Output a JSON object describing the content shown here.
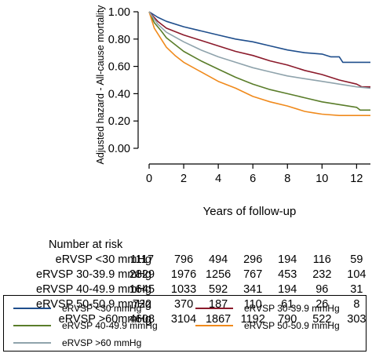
{
  "chart_data": {
    "type": "line",
    "title": "",
    "xlabel": "Years of follow-up",
    "ylabel": "Adjusted hazard - All-cause mortality",
    "xlim": [
      0,
      12.8
    ],
    "ylim": [
      0,
      1.05
    ],
    "xticks": [
      0,
      2,
      4,
      6,
      8,
      10,
      12
    ],
    "yticks": [
      0.0,
      0.2,
      0.4,
      0.6,
      0.8,
      1.0
    ],
    "xtick_labels": [
      "0",
      "2",
      "4",
      "6",
      "8",
      "10",
      "12"
    ],
    "ytick_labels": [
      "0.00",
      "0.20",
      "0.40",
      "0.60",
      "0.80",
      "1.00"
    ],
    "grid": false,
    "legend_position": "bottom",
    "series": [
      {
        "name": "eRVSP <30 mmHg",
        "color": "#1f4e8c",
        "x": [
          0,
          0.5,
          1,
          2,
          3,
          4,
          5,
          6,
          7,
          8,
          9,
          10,
          10.5,
          11,
          11.2,
          12,
          12.8
        ],
        "y": [
          1.0,
          0.96,
          0.93,
          0.89,
          0.86,
          0.83,
          0.8,
          0.78,
          0.75,
          0.72,
          0.7,
          0.69,
          0.67,
          0.67,
          0.63,
          0.63,
          0.63
        ]
      },
      {
        "name": "eRVSP 30-39.9 mmHg",
        "color": "#8b1a2b",
        "x": [
          0,
          0.5,
          1,
          2,
          3,
          4,
          5,
          6,
          7,
          8,
          9,
          10,
          11,
          12,
          12.3,
          12.8
        ],
        "y": [
          1.0,
          0.93,
          0.88,
          0.83,
          0.79,
          0.75,
          0.71,
          0.68,
          0.64,
          0.61,
          0.57,
          0.54,
          0.5,
          0.47,
          0.45,
          0.45
        ]
      },
      {
        "name": "eRVSP 40-49.9 mmHg",
        "color": "#5a7d2a",
        "x": [
          0,
          0.3,
          0.7,
          1,
          2,
          3,
          4,
          5,
          6,
          7,
          8,
          9,
          10,
          11,
          12,
          12.2,
          12.8
        ],
        "y": [
          1.0,
          0.92,
          0.86,
          0.81,
          0.71,
          0.64,
          0.58,
          0.52,
          0.47,
          0.43,
          0.4,
          0.37,
          0.34,
          0.32,
          0.3,
          0.28,
          0.28
        ]
      },
      {
        "name": "eRVSP 50-50.9 mmHg",
        "color": "#f08a1c",
        "x": [
          0,
          0.3,
          0.7,
          1,
          1.5,
          2,
          3,
          4,
          5,
          6,
          7,
          8,
          9,
          9.5,
          10,
          11,
          12,
          12.8
        ],
        "y": [
          1.0,
          0.88,
          0.8,
          0.74,
          0.68,
          0.63,
          0.56,
          0.49,
          0.44,
          0.38,
          0.34,
          0.31,
          0.27,
          0.26,
          0.25,
          0.24,
          0.24,
          0.24
        ]
      },
      {
        "name": "eRVSP >60 mmHg",
        "color": "#8fa3ac",
        "x": [
          0,
          0.5,
          1,
          2,
          3,
          4,
          5,
          6,
          7,
          8,
          9,
          10,
          11,
          12,
          12.8
        ],
        "y": [
          1.0,
          0.91,
          0.85,
          0.78,
          0.72,
          0.67,
          0.63,
          0.59,
          0.56,
          0.53,
          0.51,
          0.49,
          0.47,
          0.45,
          0.44
        ]
      }
    ]
  },
  "risk_table": {
    "title": "Number at risk",
    "rows": [
      {
        "label": "eRVSP <30 mmHg",
        "values": [
          "1117",
          "796",
          "494",
          "296",
          "194",
          "116",
          "59"
        ]
      },
      {
        "label": "eRVSP 30-39.9 mmHg",
        "values": [
          "2829",
          "1976",
          "1256",
          "767",
          "453",
          "232",
          "104"
        ]
      },
      {
        "label": "eRVSP 40-49.9 mmHg",
        "values": [
          "1645",
          "1033",
          "592",
          "341",
          "194",
          "96",
          "31"
        ]
      },
      {
        "label": "eRVSP 50-50.9 mmHg",
        "values": [
          "722",
          "370",
          "187",
          "110",
          "61",
          "26",
          "8"
        ]
      },
      {
        "label": "eRVSP >60mmHg",
        "values": [
          "4608",
          "3104",
          "1867",
          "1192",
          "790",
          "522",
          "303"
        ]
      }
    ]
  },
  "legend": [
    {
      "label": "eRVSP <30 mmHg",
      "color": "#1f4e8c"
    },
    {
      "label": "eRVSP 30-39.9 mmHg",
      "color": "#8b1a2b"
    },
    {
      "label": "eRVSP 40-49.9 mmHg",
      "color": "#5a7d2a"
    },
    {
      "label": "eRVSP 50-50.9 mmHg",
      "color": "#f08a1c"
    },
    {
      "label": "eRVSP >60 mmHg",
      "color": "#8fa3ac"
    }
  ]
}
